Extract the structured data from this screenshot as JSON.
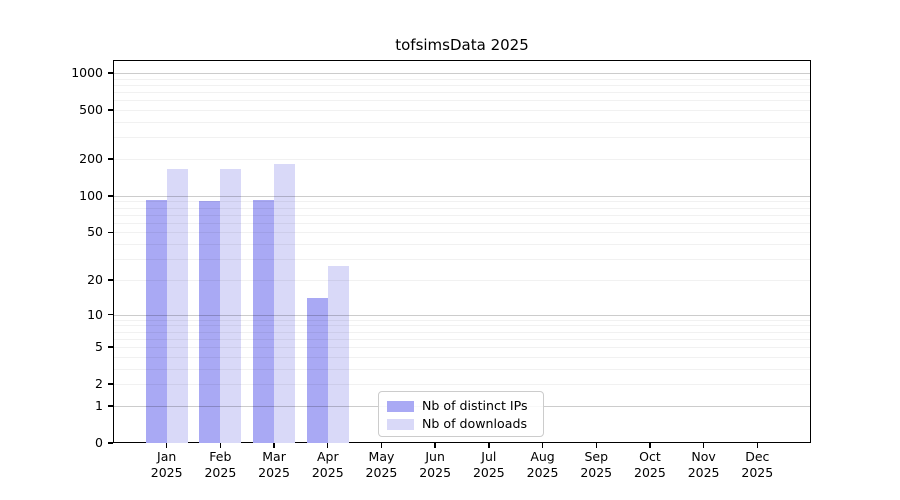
{
  "title": "tofsimsData 2025",
  "chart_data": {
    "type": "bar",
    "title": "tofsimsData 2025",
    "xlabel": "",
    "ylabel": "",
    "year_label": "2025",
    "categories": [
      "Jan",
      "Feb",
      "Mar",
      "Apr",
      "May",
      "Jun",
      "Jul",
      "Aug",
      "Sep",
      "Oct",
      "Nov",
      "Dec"
    ],
    "series": [
      {
        "name": "Nb of distinct IPs",
        "color": "#a9a9f4",
        "values": [
          93,
          90,
          93,
          14,
          0,
          0,
          0,
          0,
          0,
          0,
          0,
          0
        ]
      },
      {
        "name": "Nb of downloads",
        "color": "#d9d9f8",
        "values": [
          167,
          165,
          181,
          26,
          0,
          0,
          0,
          0,
          0,
          0,
          0,
          0
        ]
      }
    ],
    "y_axis": {
      "scale": "log1p",
      "tick_values": [
        0,
        1,
        2,
        5,
        10,
        20,
        50,
        100,
        200,
        500,
        1000
      ],
      "tick_labels": [
        "0",
        "1",
        "2",
        "5",
        "10",
        "20",
        "50",
        "100",
        "200",
        "500",
        "1000"
      ],
      "major_grid_values": [
        1,
        10,
        100,
        1000
      ],
      "minor_grid_values": [
        2,
        3,
        4,
        5,
        6,
        7,
        8,
        9,
        20,
        30,
        40,
        50,
        60,
        70,
        80,
        90,
        200,
        300,
        400,
        500,
        600,
        700,
        800,
        900
      ],
      "ylim": [
        0,
        1100
      ]
    },
    "legend_position": "inside-bottom-center",
    "grid": true
  },
  "colors": {
    "background": "#ffffff",
    "axis": "#000000",
    "bar_distinct_ips": "#a9a9f4",
    "bar_downloads": "#d9d9f8",
    "major_grid": "#c9c9c9",
    "minor_grid": "#ededed",
    "legend_border": "#cccccc"
  }
}
